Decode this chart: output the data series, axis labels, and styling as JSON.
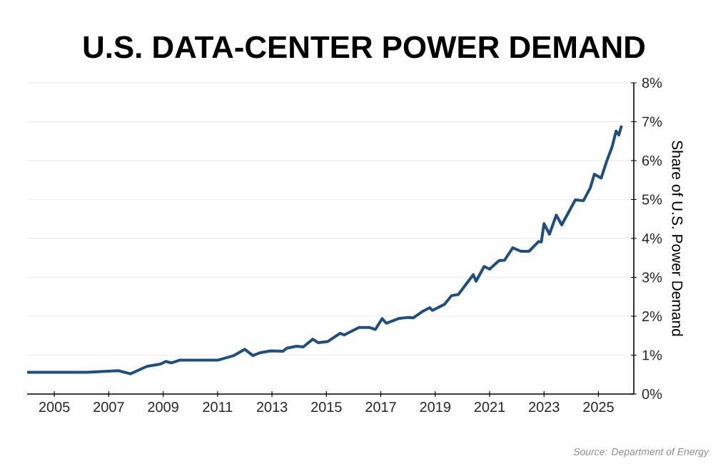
{
  "chart_data": {
    "type": "line",
    "title": "U.S. DATA-CENTER POWER DEMAND",
    "ylabel": "Share of U.S. Power Demand",
    "annotations": [
      "Source: Department of Energy"
    ],
    "color": "#1f4e82",
    "grid": "y",
    "xlim": [
      2004,
      2026.3
    ],
    "xticks": [
      2005,
      2007,
      2009,
      2011,
      2013,
      2015,
      2017,
      2019,
      2021,
      2023,
      2025
    ],
    "ylim": [
      0,
      8
    ],
    "yticks": [
      {
        "value": 0,
        "label": "0%"
      },
      {
        "value": 1,
        "label": "1%"
      },
      {
        "value": 2,
        "label": "2%"
      },
      {
        "value": 3,
        "label": "3%"
      },
      {
        "value": 4,
        "label": "4%"
      },
      {
        "value": 5,
        "label": "5%"
      },
      {
        "value": 6,
        "label": "6%"
      },
      {
        "value": 7,
        "label": "7%"
      },
      {
        "value": 8,
        "label": "8%"
      }
    ],
    "x": [
      2004.0,
      2006.2,
      2007.35,
      2007.8,
      2008.4,
      2008.9,
      2009.1,
      2009.3,
      2009.6,
      2011.0,
      2011.6,
      2012.0,
      2012.3,
      2012.55,
      2012.95,
      2013.4,
      2013.55,
      2013.9,
      2014.15,
      2014.5,
      2014.7,
      2015.05,
      2015.5,
      2015.65,
      2016.2,
      2016.6,
      2016.8,
      2017.05,
      2017.2,
      2017.65,
      2018.0,
      2018.2,
      2018.55,
      2018.8,
      2018.9,
      2019.35,
      2019.6,
      2019.85,
      2020.4,
      2020.5,
      2020.8,
      2021.0,
      2021.35,
      2021.55,
      2021.85,
      2022.15,
      2022.45,
      2022.8,
      2022.9,
      2023.0,
      2023.2,
      2023.45,
      2023.65,
      2023.9,
      2024.15,
      2024.45,
      2024.7,
      2024.85,
      2025.1,
      2025.3,
      2025.5,
      2025.65,
      2025.75,
      2025.85
    ],
    "values": [
      0.56,
      0.56,
      0.6,
      0.52,
      0.71,
      0.77,
      0.84,
      0.8,
      0.87,
      0.87,
      0.99,
      1.15,
      0.99,
      1.06,
      1.11,
      1.1,
      1.18,
      1.23,
      1.21,
      1.41,
      1.32,
      1.35,
      1.56,
      1.52,
      1.71,
      1.71,
      1.66,
      1.94,
      1.82,
      1.94,
      1.97,
      1.96,
      2.13,
      2.22,
      2.15,
      2.31,
      2.53,
      2.56,
      3.07,
      2.9,
      3.28,
      3.21,
      3.43,
      3.44,
      3.76,
      3.67,
      3.67,
      3.92,
      3.91,
      4.38,
      4.11,
      4.6,
      4.35,
      4.67,
      4.99,
      4.97,
      5.3,
      5.65,
      5.55,
      5.98,
      6.35,
      6.76,
      6.66,
      6.9
    ]
  }
}
